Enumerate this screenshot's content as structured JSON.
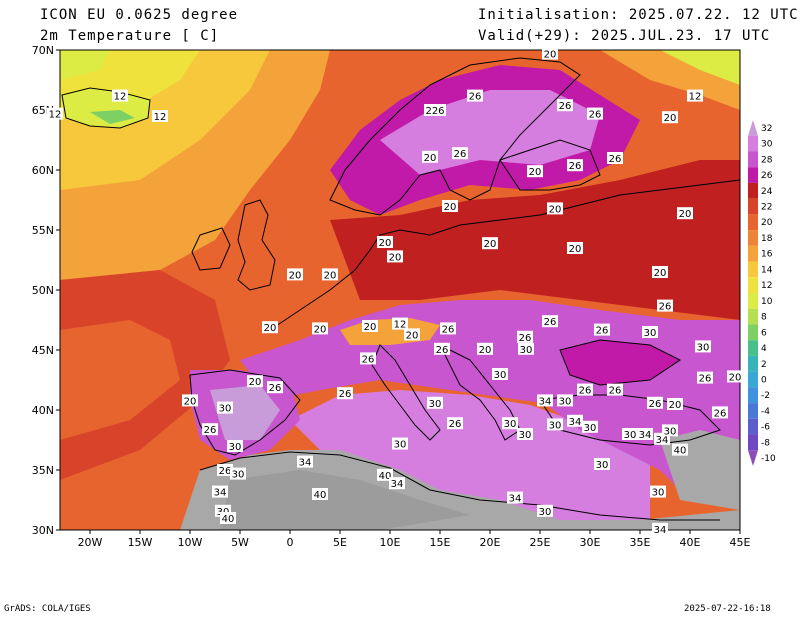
{
  "header": {
    "title_line1": "ICON EU 0.0625 degree",
    "title_line2": "2m Temperature [ C]",
    "init": "Initialisation: 2025.07.22. 12 UTC",
    "valid": "Valid(+29): 2025.JUL.23. 17 UTC"
  },
  "axes": {
    "lat_labels": [
      "70N",
      "65N",
      "60N",
      "55N",
      "50N",
      "45N",
      "40N",
      "35N",
      "30N"
    ],
    "lon_labels": [
      "20W",
      "15W",
      "10W",
      "5W",
      "0",
      "5E",
      "10E",
      "15E",
      "20E",
      "25E",
      "30E",
      "35E",
      "40E",
      "45E"
    ]
  },
  "colorbar": {
    "levels": [
      "32",
      "30",
      "28",
      "26",
      "24",
      "22",
      "20",
      "18",
      "16",
      "14",
      "12",
      "10",
      "8",
      "6",
      "4",
      "2",
      "0",
      "-2",
      "-4",
      "-6",
      "-8",
      "-10"
    ],
    "colors": [
      "#c89cd8",
      "#d67ee0",
      "#c856cf",
      "#c21aa8",
      "#c02020",
      "#d8442a",
      "#e8642e",
      "#ee8436",
      "#f4a23a",
      "#f8c83c",
      "#f0e23c",
      "#dcec44",
      "#b4e050",
      "#7cd064",
      "#48c08c",
      "#36b4b8",
      "#38a8d4",
      "#3e92de",
      "#4a78d8",
      "#5c5ed0",
      "#7048c4",
      "#8a4cb8"
    ]
  },
  "map_labels": [
    {
      "text": "20",
      "lon": 26,
      "lat": 69.7
    },
    {
      "text": "12",
      "lon": -17,
      "lat": 66.2
    },
    {
      "text": "12",
      "lon": 40.5,
      "lat": 66.2
    },
    {
      "text": "12",
      "lon": -23.5,
      "lat": 64.7
    },
    {
      "text": "12",
      "lon": -13,
      "lat": 64.5
    },
    {
      "text": "26",
      "lon": 18.5,
      "lat": 66.2
    },
    {
      "text": "226",
      "lon": 14.5,
      "lat": 65
    },
    {
      "text": "26",
      "lon": 27.5,
      "lat": 65.4
    },
    {
      "text": "26",
      "lon": 30.5,
      "lat": 64.7
    },
    {
      "text": "20",
      "lon": 38,
      "lat": 64.4
    },
    {
      "text": "20",
      "lon": 14,
      "lat": 61.1
    },
    {
      "text": "26",
      "lon": 17,
      "lat": 61.4
    },
    {
      "text": "26",
      "lon": 32.5,
      "lat": 61.0
    },
    {
      "text": "26",
      "lon": 28.5,
      "lat": 60.4
    },
    {
      "text": "20",
      "lon": 24.5,
      "lat": 59.9
    },
    {
      "text": "20",
      "lon": 16,
      "lat": 57.0
    },
    {
      "text": "20",
      "lon": 26.5,
      "lat": 56.8
    },
    {
      "text": "20",
      "lon": 39.5,
      "lat": 56.4
    },
    {
      "text": "20",
      "lon": 9.5,
      "lat": 54.0
    },
    {
      "text": "20",
      "lon": 20,
      "lat": 53.9
    },
    {
      "text": "20",
      "lon": 10.5,
      "lat": 52.8
    },
    {
      "text": "20",
      "lon": 28.5,
      "lat": 53.5
    },
    {
      "text": "20",
      "lon": 0.5,
      "lat": 51.3
    },
    {
      "text": "20",
      "lon": 4,
      "lat": 51.3
    },
    {
      "text": "20",
      "lon": 37,
      "lat": 51.5
    },
    {
      "text": "26",
      "lon": 37.5,
      "lat": 48.7
    },
    {
      "text": "26",
      "lon": 26.0,
      "lat": 47.4
    },
    {
      "text": "20",
      "lon": -2,
      "lat": 46.9
    },
    {
      "text": "20",
      "lon": 3,
      "lat": 46.8
    },
    {
      "text": "20",
      "lon": 8,
      "lat": 47.0
    },
    {
      "text": "12",
      "lon": 11,
      "lat": 47.2
    },
    {
      "text": "26",
      "lon": 15.8,
      "lat": 46.8
    },
    {
      "text": "20",
      "lon": 12.2,
      "lat": 46.3
    },
    {
      "text": "26",
      "lon": 31.2,
      "lat": 46.7
    },
    {
      "text": "30",
      "lon": 36,
      "lat": 46.5
    },
    {
      "text": "26",
      "lon": 23.5,
      "lat": 46.1
    },
    {
      "text": "30",
      "lon": 23.6,
      "lat": 45.1
    },
    {
      "text": "26",
      "lon": 15.2,
      "lat": 45.1
    },
    {
      "text": "20",
      "lon": 19.5,
      "lat": 45.1
    },
    {
      "text": "30",
      "lon": 41.3,
      "lat": 45.3
    },
    {
      "text": "26",
      "lon": 7.8,
      "lat": 44.3
    },
    {
      "text": "30",
      "lon": 21,
      "lat": 43.0
    },
    {
      "text": "26",
      "lon": 29.5,
      "lat": 41.7
    },
    {
      "text": "26",
      "lon": 32.5,
      "lat": 41.7
    },
    {
      "text": "26",
      "lon": 41.5,
      "lat": 42.7
    },
    {
      "text": "20",
      "lon": 44.5,
      "lat": 42.8
    },
    {
      "text": "20",
      "lon": -3.5,
      "lat": 42.4
    },
    {
      "text": "26",
      "lon": -1.5,
      "lat": 41.9
    },
    {
      "text": "26",
      "lon": 5.5,
      "lat": 41.4
    },
    {
      "text": "20",
      "lon": -10,
      "lat": 40.8
    },
    {
      "text": "30",
      "lon": -6.5,
      "lat": 40.2
    },
    {
      "text": "30",
      "lon": 14.5,
      "lat": 40.6
    },
    {
      "text": "34",
      "lon": 25.5,
      "lat": 40.8
    },
    {
      "text": "30",
      "lon": 27.5,
      "lat": 40.8
    },
    {
      "text": "26",
      "lon": 36.5,
      "lat": 40.6
    },
    {
      "text": "20",
      "lon": 38.5,
      "lat": 40.5
    },
    {
      "text": "26",
      "lon": 43,
      "lat": 39.8
    },
    {
      "text": "26",
      "lon": -8,
      "lat": 38.4
    },
    {
      "text": "26",
      "lon": 16.5,
      "lat": 38.9
    },
    {
      "text": "30",
      "lon": 22,
      "lat": 38.9
    },
    {
      "text": "30",
      "lon": 26.5,
      "lat": 38.8
    },
    {
      "text": "34",
      "lon": 28.5,
      "lat": 39.1
    },
    {
      "text": "30",
      "lon": 30,
      "lat": 38.6
    },
    {
      "text": "30",
      "lon": 34,
      "lat": 38.0
    },
    {
      "text": "34",
      "lon": 35.5,
      "lat": 38.0
    },
    {
      "text": "34",
      "lon": 37.2,
      "lat": 37.6
    },
    {
      "text": "30",
      "lon": 38,
      "lat": 38.3
    },
    {
      "text": "30",
      "lon": 23.5,
      "lat": 38.0
    },
    {
      "text": "30",
      "lon": -5.5,
      "lat": 37.0
    },
    {
      "text": "30",
      "lon": 11,
      "lat": 37.2
    },
    {
      "text": "40",
      "lon": 39,
      "lat": 36.7
    },
    {
      "text": "34",
      "lon": 1.5,
      "lat": 35.7
    },
    {
      "text": "30",
      "lon": 31.2,
      "lat": 35.5
    },
    {
      "text": "26",
      "lon": -6.5,
      "lat": 35.0
    },
    {
      "text": "30",
      "lon": -5.2,
      "lat": 34.7
    },
    {
      "text": "40",
      "lon": 9.5,
      "lat": 34.6
    },
    {
      "text": "34",
      "lon": 10.7,
      "lat": 33.9
    },
    {
      "text": "34",
      "lon": -7,
      "lat": 33.2
    },
    {
      "text": "40",
      "lon": 3,
      "lat": 33.0
    },
    {
      "text": "30",
      "lon": 36.8,
      "lat": 33.2
    },
    {
      "text": "34",
      "lon": 22.5,
      "lat": 32.7
    },
    {
      "text": "30",
      "lon": -6.7,
      "lat": 31.6
    },
    {
      "text": "40",
      "lon": -6.2,
      "lat": 31.0
    },
    {
      "text": "30",
      "lon": 25.5,
      "lat": 31.6
    },
    {
      "text": "34",
      "lon": 37,
      "lat": 30.1
    }
  ],
  "footer": {
    "credit": "GrADS: COLA/IGES",
    "timestamp": "2025-07-22-16:18"
  }
}
